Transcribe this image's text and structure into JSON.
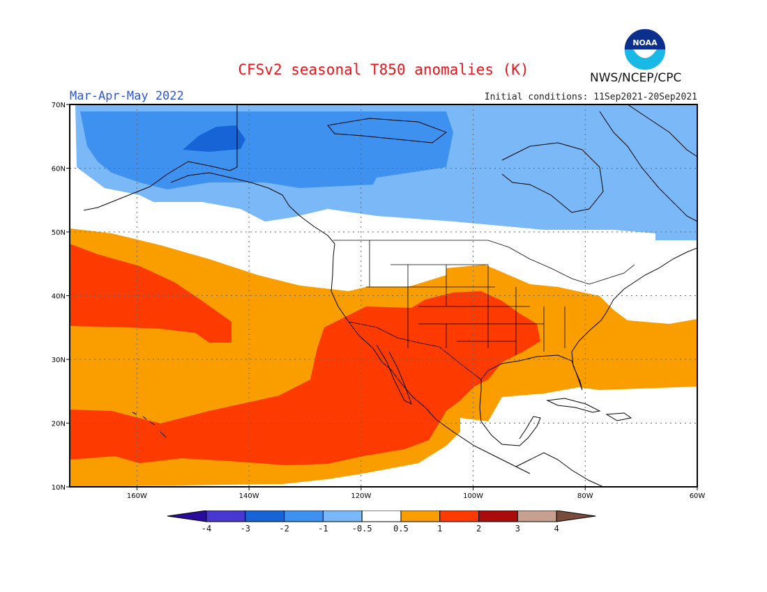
{
  "title": "CFSv2 seasonal T850 anomalies (K)",
  "season": "Mar-Apr-May 2022",
  "initial_conditions": "Initial conditions: 11Sep2021-20Sep2021",
  "agency": "NWS/NCEP/CPC",
  "logo_text": "NOAA",
  "map": {
    "lon_range": [
      -172,
      -60
    ],
    "lat_range": [
      10,
      70
    ],
    "lon_ticks": [
      {
        "value": -160,
        "label": "160W"
      },
      {
        "value": -140,
        "label": "140W"
      },
      {
        "value": -120,
        "label": "120W"
      },
      {
        "value": -100,
        "label": "100W"
      },
      {
        "value": -80,
        "label": "80W"
      },
      {
        "value": -60,
        "label": "60W"
      }
    ],
    "lat_ticks": [
      {
        "value": 10,
        "label": "10N"
      },
      {
        "value": 20,
        "label": "20N"
      },
      {
        "value": 30,
        "label": "30N"
      },
      {
        "value": 40,
        "label": "40N"
      },
      {
        "value": 50,
        "label": "50N"
      },
      {
        "value": 60,
        "label": "60N"
      },
      {
        "value": 70,
        "label": "70N"
      }
    ],
    "grid": "dotted",
    "fill_colors": {
      "-3_to_-2": "#1664d6",
      "-2_to_-1": "#3f91f0",
      "-1_to_-0.5": "#7ab8f7",
      "-0.5_to_0.5": "#ffffff",
      "0.5_to_1": "#fa9e00",
      "1_to_2": "#fd3b00"
    }
  },
  "colorbar": {
    "labels": [
      "-4",
      "-3",
      "-2",
      "-1",
      "-0.5",
      "0.5",
      "1",
      "2",
      "3",
      "4"
    ],
    "colors": [
      "#2a0c9a",
      "#4838d0",
      "#1664d6",
      "#3f91f0",
      "#7ab8f7",
      "#ffffff",
      "#fa9e00",
      "#fd3b00",
      "#a80c0c",
      "#c8a090",
      "#7a4a3a"
    ]
  }
}
